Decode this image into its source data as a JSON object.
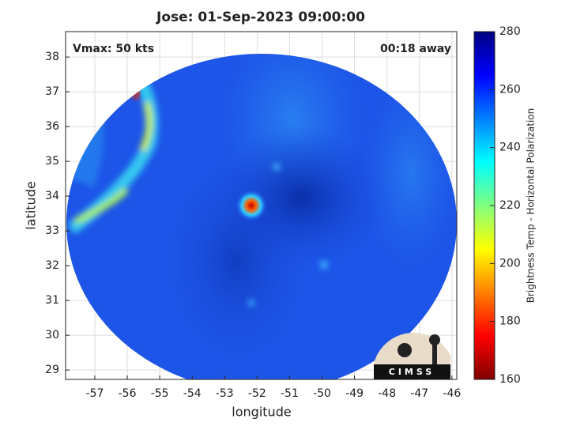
{
  "chart_data": {
    "type": "image",
    "title": "Jose: 01-Sep-2023 09:00:00",
    "annotations": [
      "Vmax: 50 kts",
      "00:18 away"
    ],
    "x_label": "longitude",
    "y_label": "latitude",
    "xlim": [
      -57.9,
      -45.85
    ],
    "xticks": [
      -57,
      -56,
      -55,
      -54,
      -53,
      -52,
      -51,
      -50,
      -49,
      -48,
      -47,
      -46
    ],
    "ylim": [
      28.73,
      38.73
    ],
    "yticks": [
      29,
      30,
      31,
      32,
      33,
      34,
      35,
      36,
      37,
      38
    ],
    "grid": true,
    "colorbar": {
      "label": "Brightness Temp - Horizontal Polarization",
      "colormap": "jet",
      "lim": [
        160,
        280
      ],
      "ticks": [
        160,
        180,
        200,
        220,
        240,
        260,
        280
      ]
    },
    "logo": "CIMSS"
  }
}
